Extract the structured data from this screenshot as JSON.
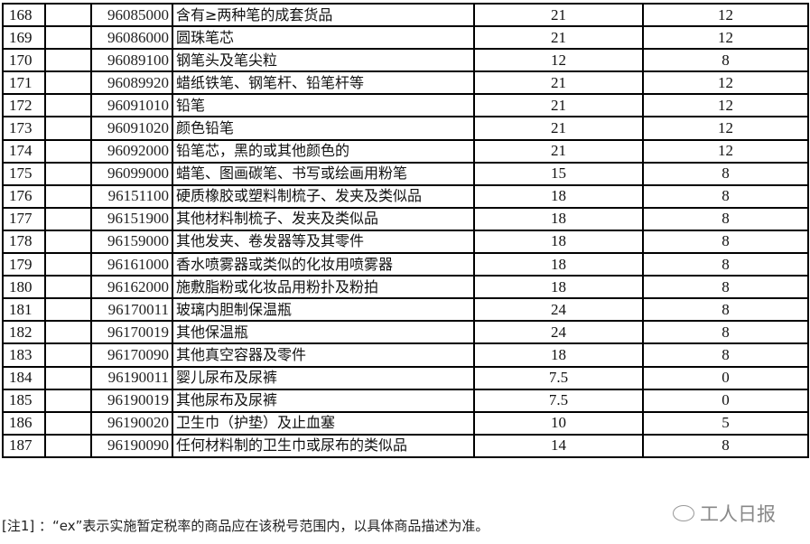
{
  "table": {
    "rows": [
      {
        "no": "168",
        "ex": "",
        "code": "96085000",
        "desc": "含有≥两种笔的成套货品",
        "mfn": "21",
        "interim": "12"
      },
      {
        "no": "169",
        "ex": "",
        "code": "96086000",
        "desc": "圆珠笔芯",
        "mfn": "21",
        "interim": "12"
      },
      {
        "no": "170",
        "ex": "",
        "code": "96089100",
        "desc": "钢笔头及笔尖粒",
        "mfn": "12",
        "interim": "8"
      },
      {
        "no": "171",
        "ex": "",
        "code": "96089920",
        "desc": "蜡纸铁笔、钢笔杆、铅笔杆等",
        "mfn": "21",
        "interim": "12"
      },
      {
        "no": "172",
        "ex": "",
        "code": "96091010",
        "desc": "铅笔",
        "mfn": "21",
        "interim": "12"
      },
      {
        "no": "173",
        "ex": "",
        "code": "96091020",
        "desc": "颜色铅笔",
        "mfn": "21",
        "interim": "12"
      },
      {
        "no": "174",
        "ex": "",
        "code": "96092000",
        "desc": "铅笔芯，黑的或其他颜色的",
        "mfn": "21",
        "interim": "12"
      },
      {
        "no": "175",
        "ex": "",
        "code": "96099000",
        "desc": "蜡笔、图画碳笔、书写或绘画用粉笔",
        "mfn": "15",
        "interim": "8"
      },
      {
        "no": "176",
        "ex": "",
        "code": "96151100",
        "desc": "硬质橡胶或塑料制梳子、发夹及类似品",
        "mfn": "18",
        "interim": "8"
      },
      {
        "no": "177",
        "ex": "",
        "code": "96151900",
        "desc": "其他材料制梳子、发夹及类似品",
        "mfn": "18",
        "interim": "8"
      },
      {
        "no": "178",
        "ex": "",
        "code": "96159000",
        "desc": "其他发夹、卷发器等及其零件",
        "mfn": "18",
        "interim": "8"
      },
      {
        "no": "179",
        "ex": "",
        "code": "96161000",
        "desc": "香水喷雾器或类似的化妆用喷雾器",
        "mfn": "18",
        "interim": "8"
      },
      {
        "no": "180",
        "ex": "",
        "code": "96162000",
        "desc": "施敷脂粉或化妆品用粉扑及粉拍",
        "mfn": "18",
        "interim": "8"
      },
      {
        "no": "181",
        "ex": "",
        "code": "96170011",
        "desc": "玻璃内胆制保温瓶",
        "mfn": "24",
        "interim": "8"
      },
      {
        "no": "182",
        "ex": "",
        "code": "96170019",
        "desc": "其他保温瓶",
        "mfn": "24",
        "interim": "8"
      },
      {
        "no": "183",
        "ex": "",
        "code": "96170090",
        "desc": "其他真空容器及零件",
        "mfn": "18",
        "interim": "8"
      },
      {
        "no": "184",
        "ex": "",
        "code": "96190011",
        "desc": "婴儿尿布及尿裤",
        "mfn": "7.5",
        "interim": "0"
      },
      {
        "no": "185",
        "ex": "",
        "code": "96190019",
        "desc": "其他尿布及尿裤",
        "mfn": "7.5",
        "interim": "0"
      },
      {
        "no": "186",
        "ex": "",
        "code": "96190020",
        "desc": "卫生巾（护垫）及止血塞",
        "mfn": "10",
        "interim": "5"
      },
      {
        "no": "187",
        "ex": "",
        "code": "96190090",
        "desc": "任何材料制的卫生巾或尿布的类似品",
        "mfn": "14",
        "interim": "8"
      }
    ]
  },
  "note": "[注1] ：“ex”表示实施暂定税率的商品应在该税号范围内，以具体商品描述为准。",
  "watermark": "工人日报"
}
